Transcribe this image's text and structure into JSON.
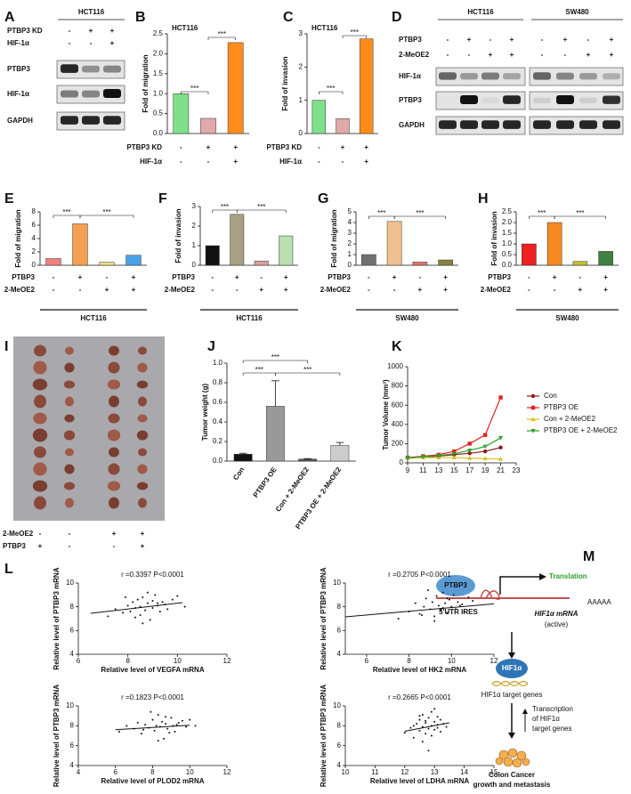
{
  "chart_data": [
    {
      "panel": "B",
      "type": "bar",
      "title": "HCT116",
      "y_label": "Fold of migration",
      "values": [
        1.0,
        0.38,
        2.28
      ],
      "colors": [
        "#7ee08a",
        "#e0a8a8",
        "#ff8c1a"
      ],
      "ylim": [
        0,
        2.5
      ],
      "yticks": [
        {
          "value": 0,
          "label": "0.0"
        },
        0.5,
        {
          "value": 1,
          "label": "1.0"
        },
        1.5,
        {
          "value": 2,
          "label": "2.0"
        },
        2.5
      ],
      "conditions": [
        {
          "name": "PTBP3 KD",
          "signs": [
            "-",
            "+",
            "+"
          ]
        },
        {
          "name": "HIF-1α",
          "signs": [
            "-",
            "-",
            "+"
          ]
        }
      ],
      "significance": [
        "***",
        "***"
      ]
    },
    {
      "panel": "C",
      "type": "bar",
      "title": "HCT116",
      "y_label": "Fold of invasion",
      "values": [
        1.0,
        0.45,
        2.85
      ],
      "colors": [
        "#7ee08a",
        "#e0a8a8",
        "#ff8c1a"
      ],
      "ylim": [
        0,
        3
      ],
      "yticks": [
        0,
        1,
        2,
        3
      ],
      "conditions": [
        {
          "name": "PTBP3 KD",
          "signs": [
            "-",
            "+",
            "+"
          ]
        },
        {
          "name": "HIF-1α",
          "signs": [
            "-",
            "-",
            "+"
          ]
        }
      ],
      "significance": [
        "***",
        "***"
      ]
    },
    {
      "panel": "E",
      "type": "bar",
      "y_label": "Fold of migration",
      "values": [
        1.0,
        6.2,
        0.45,
        1.5
      ],
      "colors": [
        "#f08080",
        "#f5a050",
        "#ece080",
        "#4aa0e8"
      ],
      "ylim": [
        0,
        8
      ],
      "yticks": [
        0,
        2,
        4,
        6,
        8
      ],
      "conditions": [
        {
          "name": "PTBP3",
          "signs": [
            "-",
            "+",
            "-",
            "+"
          ]
        },
        {
          "name": "2-MeOE2",
          "signs": [
            "-",
            "-",
            "+",
            "+"
          ]
        }
      ],
      "group": "HCT116",
      "significance": [
        "***",
        "***"
      ]
    },
    {
      "panel": "F",
      "type": "bar",
      "y_label": "Fold of invasion",
      "values": [
        1.0,
        2.6,
        0.22,
        1.5
      ],
      "colors": [
        "#111111",
        "#a8a080",
        "#d8a0a0",
        "#b8e0b0"
      ],
      "ylim": [
        0,
        3
      ],
      "yticks": [
        0,
        1,
        2,
        3
      ],
      "conditions": [
        {
          "name": "PTBP3",
          "signs": [
            "-",
            "+",
            "-",
            "+"
          ]
        },
        {
          "name": "2-MeOE2",
          "signs": [
            "-",
            "-",
            "+",
            "+"
          ]
        }
      ],
      "group": "HCT116",
      "significance": [
        "***",
        "***"
      ]
    },
    {
      "panel": "G",
      "type": "bar",
      "y_label": "Fold of migration",
      "values": [
        1.0,
        4.1,
        0.3,
        0.5
      ],
      "colors": [
        "#707070",
        "#f0c090",
        "#e87070",
        "#888040"
      ],
      "ylim": [
        0,
        5
      ],
      "yticks": [
        0,
        1,
        2,
        3,
        4,
        5
      ],
      "conditions": [
        {
          "name": "PTBP3",
          "signs": [
            "-",
            "+",
            "-",
            "+"
          ]
        },
        {
          "name": "2-MeOE2",
          "signs": [
            "-",
            "-",
            "+",
            "+"
          ]
        }
      ],
      "group": "SW480",
      "significance": [
        "***",
        "***"
      ]
    },
    {
      "panel": "H",
      "type": "bar",
      "y_label": "Fold of invasion",
      "values": [
        1.0,
        2.0,
        0.18,
        0.65
      ],
      "colors": [
        "#ee2020",
        "#f58a20",
        "#c0c030",
        "#408040"
      ],
      "ylim": [
        0,
        2.5
      ],
      "yticks": [
        {
          "value": 0,
          "label": "0.0"
        },
        0.5,
        {
          "value": 1,
          "label": "1.0"
        },
        1.5,
        {
          "value": 2,
          "label": "2.0"
        },
        2.5
      ],
      "conditions": [
        {
          "name": "PTBP3",
          "signs": [
            "-",
            "+",
            "-",
            "+"
          ]
        },
        {
          "name": "2-MeOE2",
          "signs": [
            "-",
            "-",
            "+",
            "+"
          ]
        }
      ],
      "group": "SW480",
      "significance": [
        "***",
        "***"
      ]
    },
    {
      "panel": "J",
      "type": "bar",
      "y_label": "Tumor weight (g)",
      "categories": [
        "Con",
        "PTBP3 OE",
        "Con + 2-MeOE2",
        "PTBP3 OE + 2-MeOE2"
      ],
      "values": [
        0.07,
        0.56,
        0.02,
        0.16
      ],
      "errors": [
        0.01,
        0.26,
        0.005,
        0.03
      ],
      "colors": [
        "#111111",
        "#999999",
        "#555555",
        "#cccccc"
      ],
      "ylim": [
        0,
        1.0
      ],
      "yticks": [
        {
          "value": 0,
          "label": "0.0"
        },
        0.2,
        0.4,
        0.6,
        0.8,
        {
          "value": 1,
          "label": "1.0"
        }
      ],
      "significance": [
        "***",
        "***",
        "***"
      ]
    },
    {
      "panel": "K",
      "type": "line",
      "y_label": "Tumor Volume (mm³)",
      "x": [
        9,
        11,
        13,
        15,
        17,
        19,
        21
      ],
      "xlim": [
        9,
        23
      ],
      "xticks": [
        9,
        11,
        13,
        15,
        17,
        19,
        21,
        23
      ],
      "ylim": [
        0,
        1000
      ],
      "yticks": [
        0,
        200,
        400,
        600,
        800,
        1000
      ],
      "series": [
        {
          "name": "Con",
          "color": "#8b1a1a",
          "values": [
            50,
            60,
            70,
            85,
            100,
            120,
            160
          ]
        },
        {
          "name": "PTBP3 OE",
          "color": "#e02020",
          "values": [
            55,
            70,
            85,
            120,
            200,
            290,
            680
          ]
        },
        {
          "name": "Con + 2-MeOE2",
          "color": "#d8c020",
          "values": [
            50,
            55,
            55,
            55,
            50,
            45,
            40
          ]
        },
        {
          "name": "PTBP3 OE + 2-MeOE2",
          "color": "#30a030",
          "values": [
            50,
            65,
            75,
            95,
            130,
            170,
            260
          ]
        }
      ]
    },
    {
      "panel": "L",
      "type": "scatter",
      "annotation": "r =0.3397  P<0.0001",
      "x_label": "Relative level of VEGFA mRNA",
      "y_label": "Relative level of PTBP3 mRNA",
      "xlim": [
        6,
        12
      ],
      "xticks": [
        6,
        8,
        10,
        12
      ],
      "ylim": [
        4,
        10
      ],
      "yticks": [
        4,
        6,
        8,
        10
      ],
      "x": [
        7.2,
        7.5,
        7.8,
        8.0,
        8.1,
        8.2,
        8.3,
        8.4,
        8.5,
        8.5,
        8.6,
        8.7,
        8.8,
        8.9,
        9.0,
        9.0,
        9.1,
        9.2,
        9.3,
        9.4,
        9.5,
        9.6,
        9.8,
        10.0,
        10.3,
        7.9,
        8.3,
        8.8,
        9.2,
        8.6
      ],
      "y": [
        7.2,
        7.8,
        7.5,
        8.1,
        7.6,
        8.4,
        7.9,
        8.6,
        7.3,
        8.0,
        8.8,
        7.7,
        8.3,
        6.9,
        8.5,
        7.9,
        9.0,
        8.1,
        7.6,
        8.4,
        8.2,
        7.8,
        8.6,
        8.9,
        8.0,
        8.8,
        7.1,
        9.2,
        8.3,
        6.6
      ],
      "fit": {
        "x": [
          6.5,
          10.2
        ],
        "y": [
          7.45,
          8.35
        ]
      }
    },
    {
      "type": "scatter",
      "annotation": "r =0.2705  P<0.0001",
      "x_label": "Relative level of HK2 mRNA",
      "y_label": "Relative level of PTBP3 mRNA",
      "xlim": [
        5,
        12
      ],
      "xticks": [
        6,
        8,
        10,
        12
      ],
      "ylim": [
        4,
        10
      ],
      "yticks": [
        4,
        6,
        8,
        10
      ],
      "x": [
        7.5,
        8.0,
        8.3,
        8.5,
        8.7,
        8.8,
        9.0,
        9.1,
        9.2,
        9.3,
        9.4,
        9.5,
        9.6,
        9.7,
        9.8,
        9.9,
        10.0,
        10.1,
        10.2,
        10.3,
        10.5,
        10.6,
        10.8,
        11.0,
        9.2,
        8.9,
        9.6,
        10.4,
        8.6,
        9.8
      ],
      "y": [
        7.0,
        7.6,
        8.3,
        7.4,
        8.0,
        8.7,
        7.8,
        8.4,
        7.2,
        8.9,
        8.1,
        7.7,
        9.2,
        8.3,
        7.5,
        8.6,
        8.0,
        9.0,
        7.8,
        8.4,
        8.2,
        7.6,
        8.8,
        8.5,
        6.8,
        9.4,
        7.9,
        8.1,
        7.3,
        8.7
      ],
      "fit": {
        "x": [
          5,
          12
        ],
        "y": [
          7.15,
          8.25
        ]
      }
    },
    {
      "type": "scatter",
      "annotation": "r =0.1823  P<0.0001",
      "x_label": "Relative level of PLOD2 mRNA",
      "y_label": "Relative level of PTBP3 mRNA",
      "xlim": [
        4,
        12
      ],
      "xticks": [
        4,
        6,
        8,
        10,
        12
      ],
      "ylim": [
        4,
        10
      ],
      "yticks": [
        4,
        6,
        8,
        10
      ],
      "x": [
        6.2,
        6.6,
        7.0,
        7.2,
        7.4,
        7.6,
        7.8,
        8.0,
        8.1,
        8.2,
        8.3,
        8.4,
        8.5,
        8.6,
        8.7,
        8.8,
        9.0,
        9.1,
        9.2,
        9.4,
        9.6,
        9.8,
        10.0,
        7.9,
        8.3,
        8.7,
        7.5,
        9.3,
        8.9,
        10.3
      ],
      "y": [
        7.4,
        8.0,
        7.7,
        8.3,
        7.2,
        8.1,
        7.8,
        8.6,
        7.5,
        8.0,
        9.1,
        7.9,
        8.4,
        6.7,
        8.2,
        7.7,
        8.8,
        8.0,
        7.4,
        8.3,
        8.5,
        7.9,
        8.6,
        9.4,
        6.5,
        8.9,
        7.6,
        8.1,
        7.3,
        8.0
      ],
      "fit": {
        "x": [
          6,
          10
        ],
        "y": [
          7.6,
          8.05
        ]
      }
    },
    {
      "type": "scatter",
      "annotation": "r =0.2665  P<0.0001",
      "x_label": "Relative level of LDHA mRNA",
      "y_label": "Relative level of PTBP3 mRNA",
      "xlim": [
        10,
        15
      ],
      "xticks": [
        10,
        11,
        12,
        13,
        14,
        15
      ],
      "ylim": [
        4,
        10
      ],
      "yticks": [
        4,
        6,
        8,
        10
      ],
      "x": [
        12.0,
        12.2,
        12.3,
        12.4,
        12.5,
        12.5,
        12.6,
        12.6,
        12.7,
        12.7,
        12.8,
        12.8,
        12.9,
        12.9,
        13.0,
        13.0,
        13.1,
        13.1,
        13.2,
        13.2,
        13.3,
        13.4,
        12.6,
        12.8,
        12.3,
        13.0,
        12.9,
        12.7,
        12.5,
        13.1
      ],
      "y": [
        7.3,
        7.8,
        6.8,
        8.2,
        7.5,
        8.6,
        7.9,
        9.1,
        7.2,
        8.3,
        7.7,
        8.8,
        8.0,
        9.4,
        7.6,
        8.4,
        8.1,
        8.9,
        7.4,
        8.6,
        8.2,
        7.9,
        6.4,
        5.5,
        8.0,
        9.7,
        7.0,
        8.5,
        9.0,
        7.8
      ],
      "fit": {
        "x": [
          12,
          13.5
        ],
        "y": [
          7.45,
          8.3
        ]
      }
    }
  ],
  "figures": {
    "A": {
      "panel": "A",
      "cell_line": "HCT116",
      "conditions": [
        {
          "name": "PTBP3 KD",
          "signs": [
            "-",
            "+",
            "+"
          ]
        },
        {
          "name": "HIF-1α",
          "signs": [
            "-",
            "-",
            "+"
          ]
        }
      ],
      "rows": [
        "PTBP3",
        "HIF-1α",
        "GAPDH"
      ]
    },
    "D": {
      "panel": "D",
      "cell_lines": [
        "HCT116",
        "SW480"
      ],
      "conditions": [
        {
          "name": "PTBP3",
          "signs": [
            "-",
            "+",
            "-",
            "+",
            "-",
            "+",
            "-",
            "+"
          ]
        },
        {
          "name": "2-MeOE2",
          "signs": [
            "-",
            "-",
            "+",
            "+",
            "-",
            "-",
            "+",
            "+"
          ]
        }
      ],
      "rows": [
        "HIF-1α",
        "PTBP3",
        "GAPDH"
      ]
    },
    "I": {
      "panel": "I",
      "conditions": [
        {
          "name": "2-MeOE2",
          "signs": [
            "-",
            "-",
            "+",
            "+"
          ]
        },
        {
          "name": "PTBP3",
          "signs": [
            "+",
            "-",
            "-",
            "+"
          ]
        }
      ]
    },
    "M": {
      "panel": "M",
      "protein": "PTBP3",
      "translation": "Translation",
      "ires": "5'UTR IRES",
      "polya": "AAAAA",
      "mrna": "HIF1α mRNA",
      "state": "(active)",
      "factor": "HIF1α",
      "target_genes": "HIF1α target genes",
      "transcription": [
        "Transcription",
        "of HIF1α",
        "target genes"
      ],
      "outcome": [
        "Colon Cancer",
        "growth and metastasis"
      ]
    }
  }
}
